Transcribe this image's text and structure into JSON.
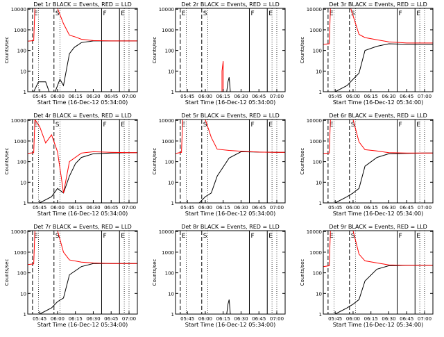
{
  "figure": {
    "xlabel": "Start Time (16-Dec-12 05:34:00)",
    "ylabel": "Counts/sec",
    "yticks": [
      {
        "value": 1,
        "label": "1"
      },
      {
        "value": 10,
        "label": "10"
      },
      {
        "value": 100,
        "label": "100"
      },
      {
        "value": 1000,
        "label": "1000"
      },
      {
        "value": 10000,
        "label": "10000"
      }
    ],
    "colors": {
      "events": "#000000",
      "lld": "#ff0000",
      "frame": "#000000"
    }
  },
  "chart_data": [
    {
      "type": "line",
      "title": "Det 1r BLACK = Events, RED = LLD",
      "xticks": [
        "05:45",
        "06:00",
        "06:15",
        "06:30",
        "06:45",
        "07:00"
      ],
      "markers": [
        "E",
        "S",
        "F",
        "E"
      ],
      "series": [
        {
          "name": "Events",
          "color": "#000000",
          "x": [
            "05:35",
            "05:40",
            "05:44",
            "05:50",
            "05:53",
            "05:58",
            "06:02",
            "06:05",
            "06:10",
            "06:14",
            "06:20",
            "06:30",
            "06:45",
            "07:00",
            "07:07"
          ],
          "y": [
            1,
            1,
            3,
            3,
            1,
            1,
            4,
            2,
            70,
            140,
            240,
            290,
            290,
            290,
            290
          ]
        },
        {
          "name": "LLD",
          "color": "#ff0000",
          "x": [
            "05:35",
            "05:40",
            "05:41",
            "05:44",
            "05:50",
            "05:55",
            "06:00",
            "06:05",
            "06:10",
            "06:15",
            "06:20",
            "06:30",
            "06:45",
            "07:00",
            "07:07"
          ],
          "y": [
            280,
            300,
            11000,
            11000,
            11000,
            11000,
            11000,
            2000,
            550,
            450,
            350,
            300,
            290,
            290,
            290
          ]
        }
      ]
    },
    {
      "type": "line",
      "title": "Det 2r BLACK = Events, RED = LLD",
      "xticks": [
        "05:45",
        "06:00",
        "06:15",
        "06:30",
        "06:45",
        "07:00"
      ],
      "markers": [
        "E",
        "S",
        "F",
        "E"
      ],
      "series": [
        {
          "name": "Events",
          "color": "#000000",
          "x": [
            "06:18",
            "06:19",
            "06:20",
            "06:21"
          ],
          "y": [
            1,
            3,
            5,
            1
          ]
        },
        {
          "name": "LLD",
          "color": "#ff0000",
          "x": [
            "06:14",
            "06:14",
            "06:15",
            "06:15"
          ],
          "y": [
            1,
            10,
            30,
            1
          ]
        }
      ]
    },
    {
      "type": "line",
      "title": "Det 3r BLACK = Events, RED = LLD",
      "xticks": [
        "05:45",
        "06:00",
        "06:15",
        "06:30",
        "06:45",
        "07:00"
      ],
      "markers": [
        "E",
        "S",
        "F",
        "E"
      ],
      "series": [
        {
          "name": "Events",
          "color": "#000000",
          "x": [
            "05:35",
            "05:45",
            "05:55",
            "06:00",
            "06:05",
            "06:10",
            "06:20",
            "06:30",
            "06:45",
            "07:00",
            "07:07"
          ],
          "y": [
            1,
            1,
            2,
            4,
            8,
            100,
            160,
            210,
            200,
            200,
            200
          ]
        },
        {
          "name": "LLD",
          "color": "#ff0000",
          "x": [
            "05:35",
            "05:40",
            "05:41",
            "05:50",
            "05:58",
            "06:05",
            "06:10",
            "06:20",
            "06:30",
            "06:45",
            "07:00",
            "07:07"
          ],
          "y": [
            200,
            210,
            11000,
            11000,
            11000,
            600,
            420,
            330,
            260,
            230,
            230,
            230
          ]
        }
      ]
    },
    {
      "type": "line",
      "title": "Det 4r BLACK = Events, RED = LLD",
      "xticks": [
        "05:45",
        "06:00",
        "06:15",
        "06:30",
        "06:45",
        "07:00"
      ],
      "markers": [
        "E",
        "S",
        "F",
        "E"
      ],
      "series": [
        {
          "name": "Events",
          "color": "#000000",
          "x": [
            "05:35",
            "05:45",
            "05:55",
            "06:00",
            "06:05",
            "06:10",
            "06:15",
            "06:20",
            "06:30",
            "06:45",
            "07:00",
            "07:07"
          ],
          "y": [
            1,
            1,
            2,
            5,
            3,
            20,
            80,
            160,
            240,
            260,
            270,
            270
          ]
        },
        {
          "name": "LLD",
          "color": "#ff0000",
          "x": [
            "05:35",
            "05:40",
            "05:41",
            "05:45",
            "05:50",
            "05:55",
            "06:00",
            "06:03",
            "06:05",
            "06:10",
            "06:20",
            "06:30",
            "06:45",
            "07:00",
            "07:07"
          ],
          "y": [
            250,
            270,
            11000,
            5000,
            800,
            2000,
            300,
            20,
            3,
            100,
            260,
            300,
            280,
            270,
            270
          ]
        }
      ]
    },
    {
      "type": "line",
      "title": "Det 5r BLACK = Events, RED = LLD",
      "xticks": [
        "05:45",
        "06:00",
        "06:15",
        "06:30",
        "06:45",
        "07:00"
      ],
      "markers": [
        "E",
        "S",
        "F",
        "E"
      ],
      "series": [
        {
          "name": "Events",
          "color": "#000000",
          "x": [
            "05:35",
            "05:45",
            "05:55",
            "06:00",
            "06:05",
            "06:10",
            "06:20",
            "06:30",
            "06:45",
            "07:00",
            "07:07"
          ],
          "y": [
            1,
            1,
            1,
            2,
            3,
            20,
            150,
            300,
            290,
            280,
            280
          ]
        },
        {
          "name": "LLD",
          "color": "#ff0000",
          "x": [
            "05:35",
            "05:40",
            "05:41",
            "05:50",
            "06:00",
            "06:05",
            "06:10",
            "06:20",
            "06:30",
            "06:45",
            "07:00",
            "07:07"
          ],
          "y": [
            250,
            280,
            11000,
            11000,
            11000,
            1500,
            400,
            350,
            320,
            290,
            280,
            280
          ]
        }
      ]
    },
    {
      "type": "line",
      "title": "Det 6r BLACK = Events, RED = LLD",
      "xticks": [
        "05:45",
        "06:00",
        "06:15",
        "06:30",
        "06:45",
        "07:00"
      ],
      "markers": [
        "E",
        "S",
        "F",
        "E"
      ],
      "series": [
        {
          "name": "Events",
          "color": "#000000",
          "x": [
            "05:35",
            "05:45",
            "05:55",
            "06:00",
            "06:05",
            "06:10",
            "06:20",
            "06:30",
            "06:45",
            "07:00",
            "07:07"
          ],
          "y": [
            1,
            1,
            2,
            3,
            5,
            60,
            160,
            240,
            250,
            260,
            260
          ]
        },
        {
          "name": "LLD",
          "color": "#ff0000",
          "x": [
            "05:35",
            "05:40",
            "05:41",
            "05:50",
            "06:00",
            "06:05",
            "06:10",
            "06:20",
            "06:30",
            "06:45",
            "07:00",
            "07:07"
          ],
          "y": [
            250,
            260,
            11000,
            11000,
            11000,
            900,
            380,
            330,
            270,
            260,
            260,
            260
          ]
        }
      ]
    },
    {
      "type": "line",
      "title": "Det 7r BLACK = Events, RED = LLD",
      "xticks": [
        "05:45",
        "06:00",
        "06:15",
        "06:30",
        "06:45",
        "07:00"
      ],
      "markers": [
        "E",
        "S",
        "F",
        "E"
      ],
      "series": [
        {
          "name": "Events",
          "color": "#000000",
          "x": [
            "05:35",
            "05:45",
            "05:55",
            "06:00",
            "06:05",
            "06:10",
            "06:20",
            "06:30",
            "06:45",
            "07:00",
            "07:07"
          ],
          "y": [
            1,
            1,
            2,
            4,
            6,
            80,
            200,
            280,
            280,
            280,
            280
          ]
        },
        {
          "name": "LLD",
          "color": "#ff0000",
          "x": [
            "05:35",
            "05:40",
            "05:41",
            "05:50",
            "06:00",
            "06:05",
            "06:10",
            "06:20",
            "06:30",
            "06:45",
            "07:00",
            "07:07"
          ],
          "y": [
            250,
            270,
            11000,
            11000,
            11000,
            1000,
            420,
            330,
            300,
            280,
            280,
            280
          ]
        }
      ]
    },
    {
      "type": "line",
      "title": "Det 8r BLACK = Events, RED = LLD",
      "xticks": [
        "05:45",
        "06:00",
        "06:15",
        "06:30",
        "06:45",
        "07:00"
      ],
      "markers": [
        "E",
        "S",
        "F",
        "E"
      ],
      "series": [
        {
          "name": "Events",
          "color": "#000000",
          "x": [
            "06:18",
            "06:19",
            "06:20",
            "06:21"
          ],
          "y": [
            1,
            3,
            5,
            1
          ]
        }
      ]
    },
    {
      "type": "line",
      "title": "Det 9r BLACK = Events, RED = LLD",
      "xticks": [
        "05:45",
        "06:00",
        "06:15",
        "06:30",
        "06:45",
        "07:00"
      ],
      "markers": [
        "E",
        "S",
        "F",
        "E"
      ],
      "series": [
        {
          "name": "Events",
          "color": "#000000",
          "x": [
            "05:35",
            "05:45",
            "05:55",
            "06:00",
            "06:05",
            "06:10",
            "06:20",
            "06:30",
            "06:45",
            "07:00",
            "07:07"
          ],
          "y": [
            1,
            1,
            2,
            3,
            5,
            40,
            150,
            220,
            230,
            230,
            230
          ]
        },
        {
          "name": "LLD",
          "color": "#ff0000",
          "x": [
            "05:35",
            "05:40",
            "05:41",
            "05:50",
            "06:00",
            "06:05",
            "06:10",
            "06:20",
            "06:30",
            "06:45",
            "07:00",
            "07:07"
          ],
          "y": [
            200,
            220,
            11000,
            11000,
            11000,
            800,
            380,
            300,
            240,
            230,
            230,
            230
          ]
        }
      ]
    }
  ]
}
